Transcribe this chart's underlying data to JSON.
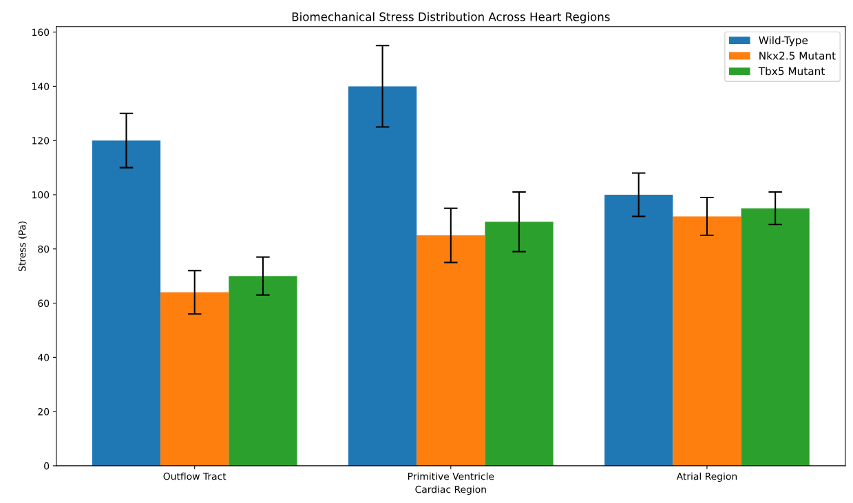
{
  "chart_data": {
    "type": "bar",
    "title": "Biomechanical Stress Distribution Across Heart Regions",
    "xlabel": "Cardiac Region",
    "ylabel": "Stress (Pa)",
    "categories": [
      "Outflow Tract",
      "Primitive Ventricle",
      "Atrial Region"
    ],
    "series": [
      {
        "name": "Wild-Type",
        "color": "#1f77b4",
        "values": [
          120,
          140,
          100
        ],
        "errors": [
          10,
          15,
          8
        ]
      },
      {
        "name": "Nkx2.5 Mutant",
        "color": "#ff7f0e",
        "values": [
          64,
          85,
          92
        ],
        "errors": [
          8,
          10,
          7
        ]
      },
      {
        "name": "Tbx5 Mutant",
        "color": "#2ca02c",
        "values": [
          70,
          90,
          95
        ],
        "errors": [
          7,
          11,
          6
        ]
      }
    ],
    "ylim": [
      0,
      162
    ],
    "yticks": [
      0,
      20,
      40,
      60,
      80,
      100,
      120,
      140,
      160
    ],
    "grid": false,
    "legend": "top right"
  }
}
